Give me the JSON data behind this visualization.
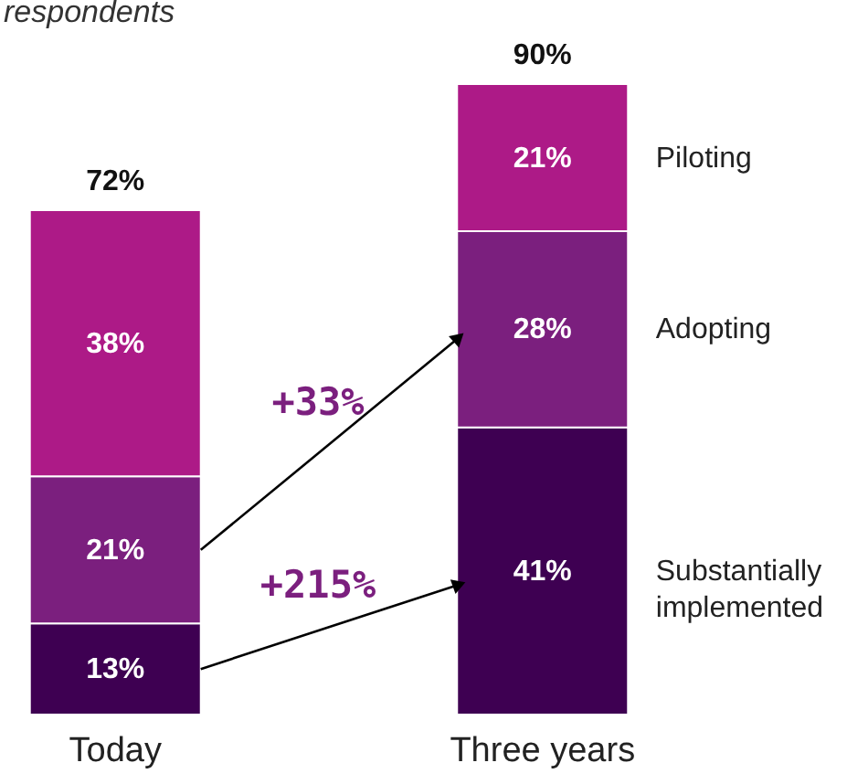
{
  "chart_data": {
    "type": "bar",
    "stacked": true,
    "subtitle": "respondents",
    "categories": [
      "Today",
      "Three years"
    ],
    "series": [
      {
        "name": "Substantially implemented",
        "color": "#3e0052",
        "values": [
          13,
          41
        ],
        "value_labels": [
          "13%",
          "41%"
        ]
      },
      {
        "name": "Adopting",
        "color": "#7b1f7e",
        "values": [
          21,
          28
        ],
        "value_labels": [
          "21%",
          "28%"
        ]
      },
      {
        "name": "Piloting",
        "color": "#ad1a87",
        "values": [
          38,
          21
        ],
        "value_labels": [
          "38%",
          "21%"
        ]
      }
    ],
    "totals": [
      "72%",
      "90%"
    ],
    "annotations": [
      "+33%",
      "+215%"
    ],
    "legend": false
  }
}
